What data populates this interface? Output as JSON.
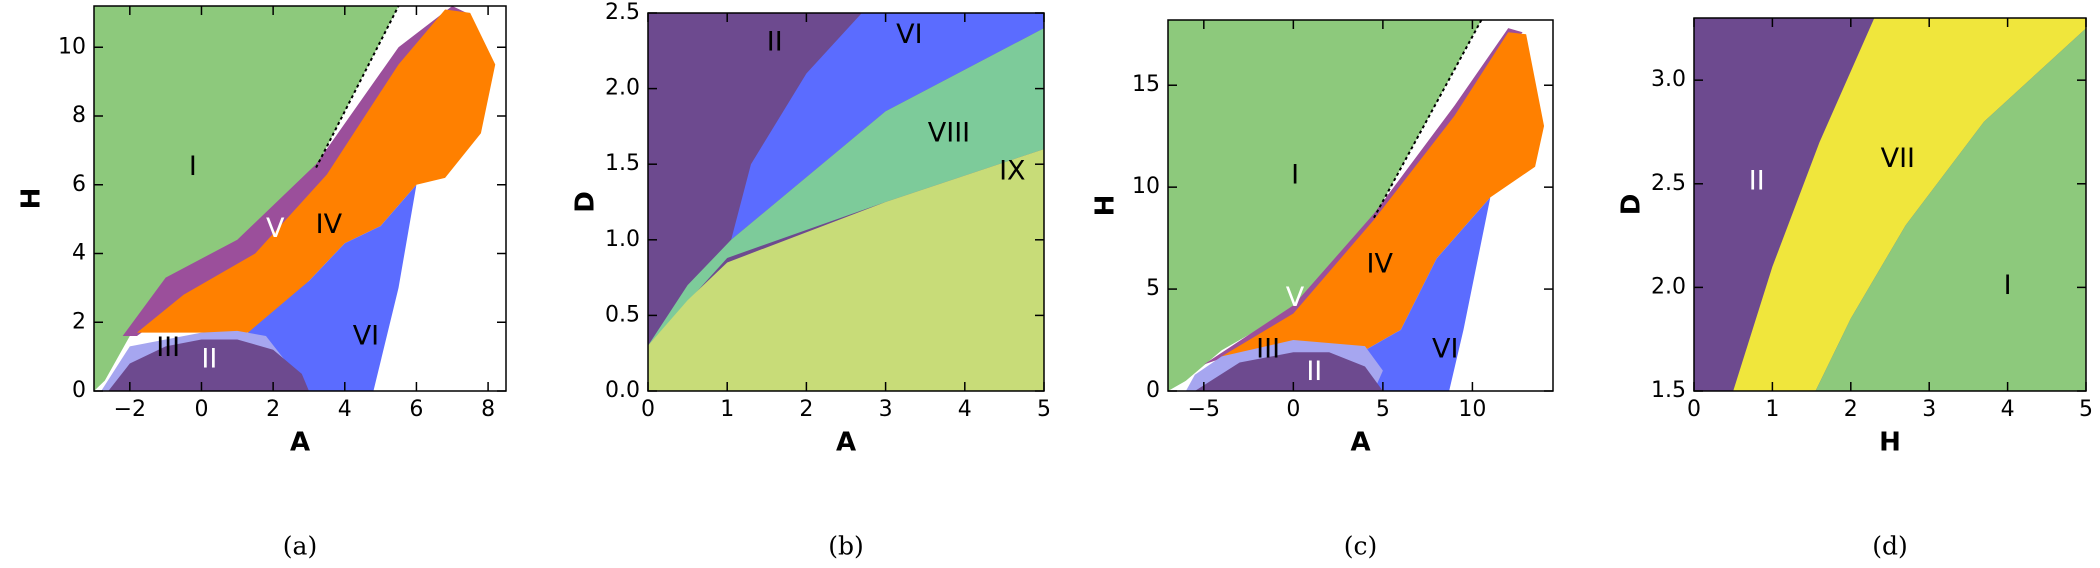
{
  "chart_data": [
    {
      "type": "region",
      "caption": "(a)",
      "xlabel": "A",
      "ylabel": "H",
      "xlim": [
        -3,
        8.5
      ],
      "ylim": [
        0,
        11.2
      ],
      "xticks": [
        {
          "value": -2,
          "label": "−2"
        },
        0,
        2,
        4,
        6,
        8
      ],
      "yticks": [
        0,
        2,
        4,
        6,
        8,
        10
      ],
      "boundary": {
        "x": [
          3.2,
          5.5
        ],
        "y": [
          6.5,
          11.2
        ]
      },
      "regions": [
        {
          "name": "I",
          "color": "#8dc97c",
          "x": [
            -3,
            -3,
            5.5,
            3.2,
            1,
            -1,
            -2,
            -2.7
          ],
          "y": [
            0,
            11.2,
            11.2,
            6.5,
            4.3,
            3.2,
            1.6,
            0.3
          ]
        },
        {
          "name": "V",
          "color": "#9b4f9b",
          "x": [
            -2.2,
            -1,
            1,
            3.2,
            5.5,
            7,
            7.4,
            6.5,
            3.5,
            1.5,
            -0.5,
            -1.8
          ],
          "y": [
            1.6,
            3.3,
            4.4,
            6.6,
            10,
            11.2,
            11,
            10,
            6.1,
            3.8,
            2.6,
            1.6
          ]
        },
        {
          "name": "IV",
          "color": "#ff8000",
          "x": [
            -1.8,
            -0.5,
            1.5,
            3.5,
            5.5,
            6.8,
            7.5,
            8.2,
            7.8,
            6.8,
            6,
            5,
            4,
            3,
            1.8,
            0
          ],
          "y": [
            1.7,
            2.8,
            4,
            6.3,
            9.5,
            11.1,
            11,
            9.5,
            7.5,
            6.2,
            6,
            4.8,
            4.3,
            3.2,
            1.7,
            1.7
          ]
        },
        {
          "name": "VI",
          "color": "#5b6cff",
          "x": [
            1.3,
            3,
            4,
            5,
            6,
            5.5,
            4.8,
            1.5
          ],
          "y": [
            1.7,
            3.2,
            4.3,
            4.8,
            6,
            3,
            0,
            0
          ]
        },
        {
          "name": "III",
          "color": "#a6a6f0",
          "x": [
            -2.8,
            -2,
            0,
            1,
            1.8,
            3,
            -2.8
          ],
          "y": [
            0,
            1.3,
            1.7,
            1.75,
            1.6,
            0,
            0
          ]
        },
        {
          "name": "II",
          "color": "#6d4a8f",
          "x": [
            -2.6,
            -2,
            -1,
            0,
            1,
            2,
            2.8,
            3
          ],
          "y": [
            0,
            0.8,
            1.3,
            1.5,
            1.5,
            1.2,
            0.5,
            0
          ]
        }
      ]
    },
    {
      "type": "region",
      "caption": "(b)",
      "xlabel": "A",
      "ylabel": "D",
      "xlim": [
        0,
        5
      ],
      "ylim": [
        0,
        2.5
      ],
      "xticks": [
        0,
        1,
        2,
        3,
        4,
        5
      ],
      "yticks": [
        {
          "value": 0,
          "label": "0.0"
        },
        0.5,
        {
          "value": 1,
          "label": "1.0"
        },
        1.5,
        {
          "value": 2,
          "label": "2.0"
        },
        2.5
      ],
      "regions": [
        {
          "name": "II",
          "color": "#6d4a8f",
          "x": [
            0,
            0,
            5,
            5
          ],
          "y": [
            0,
            2.5,
            2.5,
            0
          ]
        },
        {
          "name": "VI",
          "color": "#5b6cff",
          "x": [
            1.05,
            1.3,
            2,
            2.7,
            5,
            5,
            3,
            1.05
          ],
          "y": [
            1,
            1.5,
            2.1,
            2.5,
            2.5,
            2.4,
            1.85,
            1
          ]
        },
        {
          "name": "VIII",
          "color": "#7dcb9a",
          "x": [
            0,
            0.5,
            1.05,
            3,
            5,
            5,
            3,
            1,
            0
          ],
          "y": [
            0.3,
            0.7,
            1,
            1.85,
            2.4,
            1.6,
            1.25,
            0.88,
            0.3
          ]
        },
        {
          "name": "IX",
          "color": "#c8dc78",
          "x": [
            0,
            0,
            0.5,
            1,
            3,
            5,
            5
          ],
          "y": [
            0,
            0.3,
            0.6,
            0.85,
            1.25,
            1.6,
            0
          ]
        }
      ]
    },
    {
      "type": "region",
      "caption": "(c)",
      "xlabel": "A",
      "ylabel": "H",
      "xlim": [
        -7,
        14.5
      ],
      "ylim": [
        0,
        18.2
      ],
      "xticks": [
        {
          "value": -5,
          "label": "−5"
        },
        0,
        5,
        10
      ],
      "yticks": [
        0,
        5,
        10,
        15
      ],
      "boundary": {
        "x": [
          4.5,
          10.5
        ],
        "y": [
          8.5,
          18.2
        ]
      },
      "regions": [
        {
          "name": "I",
          "color": "#8dc97c",
          "x": [
            -7,
            -7,
            10.5,
            4.5,
            0,
            -4,
            -6
          ],
          "y": [
            0,
            18.2,
            18.2,
            8.5,
            4,
            2,
            0.5
          ]
        },
        {
          "name": "V",
          "color": "#9b4f9b",
          "x": [
            -5,
            0,
            4.5,
            9,
            12,
            12.8,
            11,
            5,
            0,
            -4
          ],
          "y": [
            1.3,
            4.2,
            8.7,
            14,
            17.8,
            17.6,
            15.5,
            8,
            3.6,
            1.6
          ]
        },
        {
          "name": "IV",
          "color": "#ff8000",
          "x": [
            -4,
            0,
            4.5,
            9,
            12,
            13,
            14,
            13.5,
            11,
            9.5,
            8,
            6,
            4,
            2
          ],
          "y": [
            1.7,
            3.8,
            8.4,
            13.5,
            17.6,
            17.5,
            13,
            11,
            9.5,
            8,
            6.5,
            3,
            2,
            2.3
          ]
        },
        {
          "name": "VI",
          "color": "#5b6cff",
          "x": [
            4,
            6,
            8,
            9.5,
            11,
            9.5,
            8.7,
            3
          ],
          "y": [
            2,
            3,
            6.5,
            8,
            9.5,
            3,
            0,
            0
          ]
        },
        {
          "name": "III",
          "color": "#a6a6f0",
          "x": [
            -5.5,
            -4,
            0,
            4,
            5,
            4.5,
            -6
          ],
          "y": [
            0.8,
            1.7,
            2.5,
            2.2,
            1,
            0,
            0
          ]
        },
        {
          "name": "II",
          "color": "#6d4a8f",
          "x": [
            -5.5,
            -3,
            0,
            2,
            4,
            5
          ],
          "y": [
            0,
            1.4,
            1.9,
            1.9,
            1.2,
            0
          ]
        }
      ]
    },
    {
      "type": "region",
      "caption": "(d)",
      "xlabel": "H",
      "ylabel": "D",
      "xlim": [
        0,
        5
      ],
      "ylim": [
        1.5,
        3.3
      ],
      "xticks": [
        0,
        1,
        2,
        3,
        4,
        5
      ],
      "yticks": [
        1.5,
        {
          "value": 2,
          "label": "2.0"
        },
        2.5,
        {
          "value": 3,
          "label": "3.0"
        }
      ],
      "regions": [
        {
          "name": "II",
          "color": "#6d4a8f",
          "x": [
            0,
            0,
            5,
            5
          ],
          "y": [
            1.5,
            3.3,
            3.3,
            1.5
          ]
        },
        {
          "name": "VII",
          "color": "#f0e63c",
          "x": [
            0.5,
            1,
            1.6,
            2.3,
            5,
            5,
            3.7,
            2.7,
            2,
            1.55
          ],
          "y": [
            1.5,
            2.1,
            2.7,
            3.3,
            3.3,
            3.25,
            2.8,
            2.3,
            1.85,
            1.5
          ]
        },
        {
          "name": "I",
          "color": "#8dc97c",
          "x": [
            1.55,
            2,
            2.7,
            3.7,
            5,
            5
          ],
          "y": [
            1.5,
            1.85,
            2.3,
            2.8,
            3.25,
            1.5
          ]
        }
      ]
    }
  ]
}
